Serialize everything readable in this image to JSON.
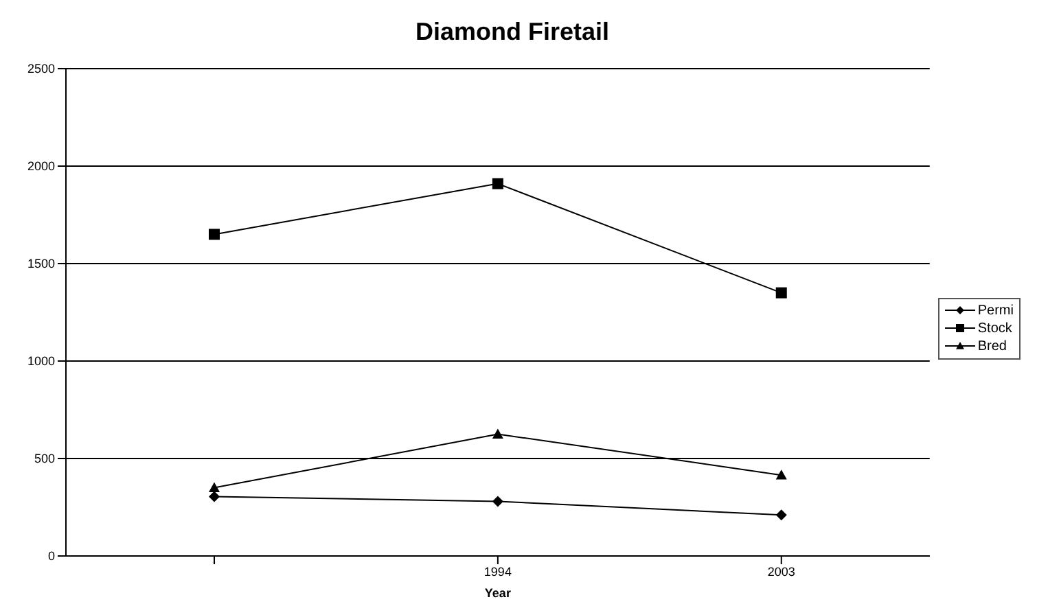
{
  "chart_data": {
    "type": "line",
    "title": "Diamond Firetail",
    "xlabel": "Year",
    "categories": [
      null,
      "1994",
      "2003"
    ],
    "series": [
      {
        "name": "Permi",
        "color": "#000000",
        "marker": "diamond",
        "values": [
          305,
          280,
          210
        ]
      },
      {
        "name": "Stock",
        "color": "#000000",
        "marker": "square",
        "values": [
          1650,
          1910,
          1350
        ]
      },
      {
        "name": "Bred",
        "color": "#000000",
        "marker": "triangle",
        "values": [
          350,
          625,
          415
        ]
      }
    ],
    "ylim": [
      0,
      2500
    ],
    "yticks": [
      0,
      500,
      1000,
      1500,
      2000,
      2500
    ],
    "grid": "y",
    "legend": "right"
  }
}
